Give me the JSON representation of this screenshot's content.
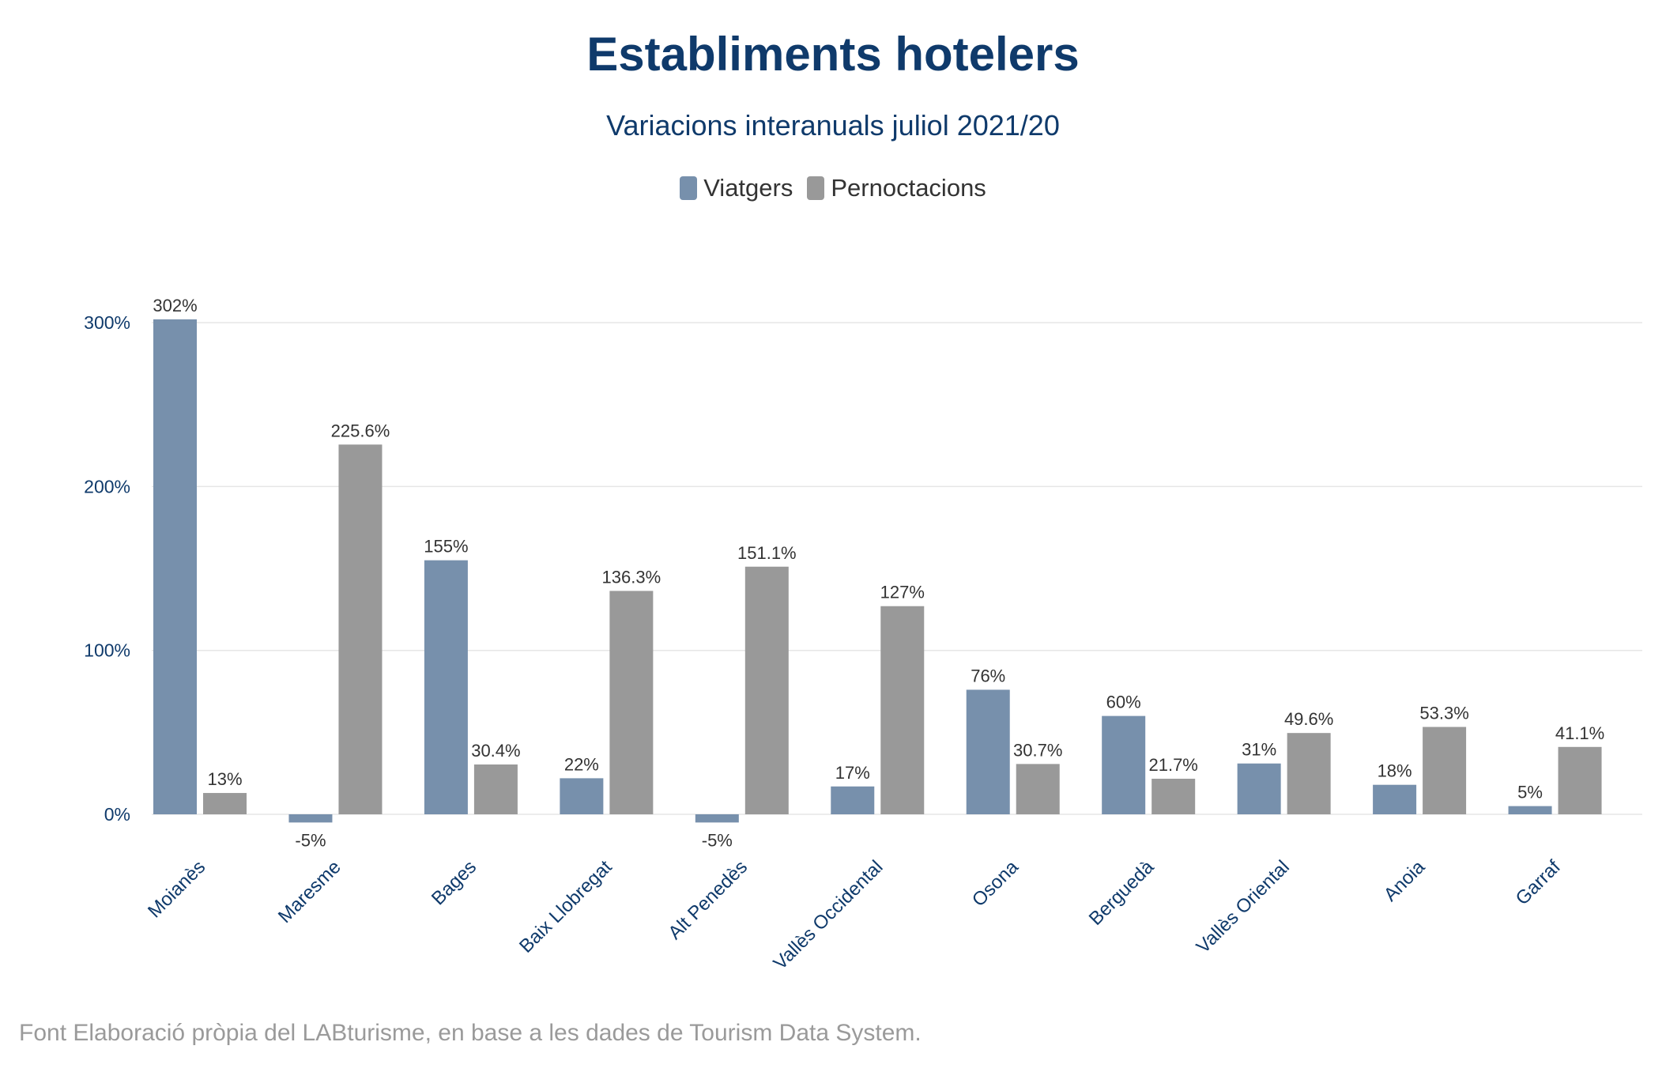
{
  "title": "Establiments hotelers",
  "subtitle": "Variacions interanuals juliol 2021/20",
  "source": "Font Elaboració pròpia del LABturisme, en base a les dades de Tourism Data System.",
  "colors": {
    "viatgers": "#7790ac",
    "pernoctacions": "#999999",
    "axis_text": "#0f3a6b",
    "label_text": "#333333",
    "grid": "#e6e6e6"
  },
  "chart_data": {
    "type": "bar",
    "title": "Establiments hotelers",
    "subtitle": "Variacions interanuals juliol 2021/20",
    "xlabel": "",
    "ylabel": "",
    "ylim": [
      -15,
      310
    ],
    "yticks": [
      0,
      100,
      200,
      300
    ],
    "ytick_labels": [
      "0%",
      "100%",
      "200%",
      "300%"
    ],
    "grid": true,
    "legend_position": "top-center",
    "categories": [
      "Moianès",
      "Maresme",
      "Bages",
      "Baix Llobregat",
      "Alt Penedès",
      "Vallès Occidental",
      "Osona",
      "Berguedà",
      "Vallès Oriental",
      "Anoia",
      "Garraf"
    ],
    "series": [
      {
        "name": "Viatgers",
        "values": [
          302,
          -5,
          155,
          22,
          -5,
          17,
          76,
          60,
          31,
          18,
          5
        ],
        "labels": [
          "302%",
          "-5%",
          "155%",
          "22%",
          "-5%",
          "17%",
          "76%",
          "60%",
          "31%",
          "18%",
          "5%"
        ]
      },
      {
        "name": "Pernoctacions",
        "values": [
          13,
          225.6,
          30.4,
          136.3,
          151.1,
          127,
          30.7,
          21.7,
          49.6,
          53.3,
          41.1
        ],
        "labels": [
          "13%",
          "225.6%",
          "30.4%",
          "136.3%",
          "151.1%",
          "127%",
          "30.7%",
          "21.7%",
          "49.6%",
          "53.3%",
          "41.1%"
        ]
      }
    ]
  }
}
